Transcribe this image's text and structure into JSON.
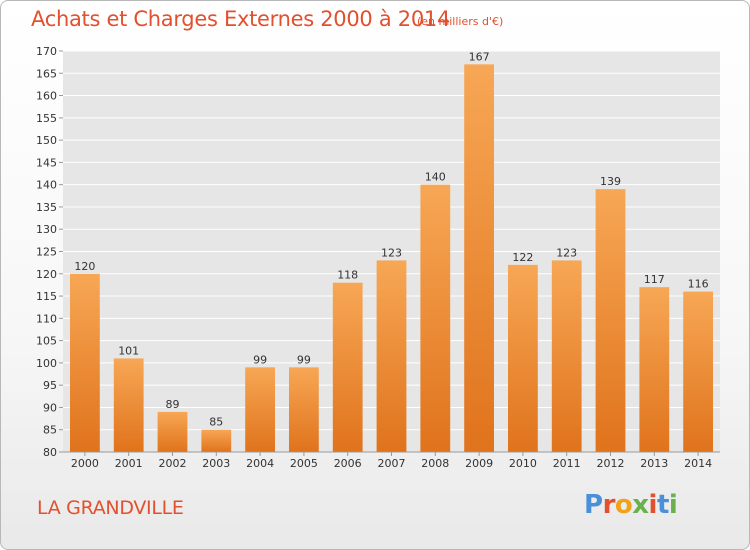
{
  "header": {
    "title": "Achats et Charges Externes 2000 à 2014",
    "subtitle": "(en milliers d'€)"
  },
  "footer": {
    "commune": "LA GRANDVILLE",
    "logo_text": "Proxiti"
  },
  "colors": {
    "bar_top": "#f7a755",
    "bar_bottom": "#e0731c",
    "title": "#e2502e",
    "logo": [
      "#4a90d9",
      "#e2502e",
      "#f2a21a",
      "#6ab04c",
      "#e2502e",
      "#4a90d9",
      "#6ab04c"
    ]
  },
  "chart_data": {
    "type": "bar",
    "title": "Achats et Charges Externes 2000 à 2014",
    "categories": [
      "2000",
      "2001",
      "2002",
      "2003",
      "2004",
      "2005",
      "2006",
      "2007",
      "2008",
      "2009",
      "2010",
      "2011",
      "2012",
      "2013",
      "2014"
    ],
    "values": [
      120,
      101,
      89,
      85,
      99,
      99,
      118,
      123,
      140,
      167,
      122,
      123,
      139,
      117,
      116
    ],
    "ylim": [
      80,
      170
    ],
    "ytick_step": 5,
    "grid": true
  }
}
